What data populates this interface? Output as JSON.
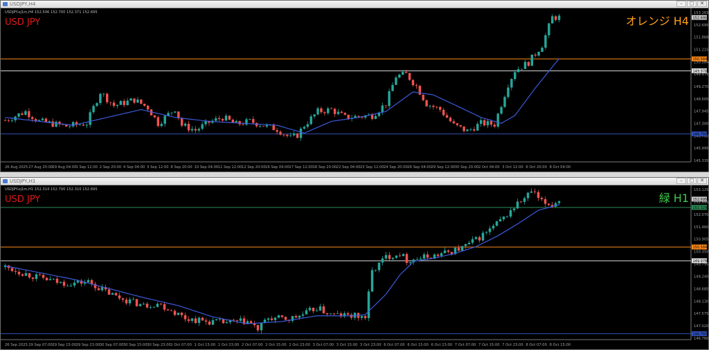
{
  "colors": {
    "background": "#000000",
    "bull": "#26a69a",
    "bear": "#ef5350",
    "ma": "#3b5bdb",
    "grid": "#2a2a2a",
    "axis_text": "#a0a0a0",
    "orange_line": "#ff8c1a",
    "white_line": "#e0e0e0",
    "blue_line": "#2f4fb5",
    "green_line": "#2e8b57",
    "symbol_red": "#e01818",
    "h4_badge": "#ff9f1a",
    "h1_badge": "#3cc84a"
  },
  "icons": {
    "minimize": "minimize-icon",
    "restore": "restore-icon",
    "close": "close-icon"
  },
  "h4": {
    "window_title": "USDJPY,H4",
    "info_line": "USDJPY.oj1m,H4  152.506 152.700 152.371 152.695",
    "symbol_label": "USD JPY",
    "badge": "オレンジ H4",
    "price_labels": [
      "153.163",
      "152.695",
      "151.868",
      "151.215",
      "150.584",
      "149.978",
      "149.270",
      "148.605",
      "147.945",
      "147.300",
      "146.760",
      "145.995",
      "145.335"
    ],
    "time_labels": [
      "26 Aug 2025",
      "27 Aug 20:00",
      "29 Aug 04:00",
      "1 Sep 12:00",
      "2 Sep 20:00",
      "4 Sep 04:00",
      "5 Sep 12:00",
      "8 Sep 20:00",
      "10 Sep 04:00",
      "11 Sep 12:00",
      "12 Sep 20:00",
      "16 Sep 04:00",
      "17 Sep 12:00",
      "18 Sep 20:00",
      "22 Sep 04:00",
      "23 Sep 12:00",
      "24 Sep 20:00",
      "26 Sep 04:00",
      "29 Sep 12:00",
      "30 Sep 20:00",
      "2 Oct 04:00",
      "3 Oct 12:00",
      "6 Oct 20:00",
      "8 Oct 04:00"
    ],
    "current_price": "152.695",
    "level_labels": {
      "orange": "150.584",
      "white": "149.978",
      "blue": "146.760"
    }
  },
  "h1": {
    "window_title": "USDJPY,H1",
    "info_line": "USDJPY.oj1m,H1  152.314 152.700 152.310 152.695",
    "symbol_label": "USD JPY",
    "badge": "緑 H1",
    "price_labels": [
      "153.125",
      "152.695",
      "152.070",
      "151.460",
      "150.905",
      "150.350",
      "149.795",
      "149.240",
      "148.685",
      "148.130",
      "147.575",
      "147.020",
      "146.760"
    ],
    "time_labels": [
      "26 Sep 2025",
      "29 Sep 07:00",
      "29 Sep 15:00",
      "29 Sep 23:00",
      "30 Sep 07:00",
      "30 Sep 15:00",
      "30 Sep 23:00",
      "1 Oct 07:00",
      "1 Oct 15:00",
      "1 Oct 23:00",
      "2 Oct 07:00",
      "2 Oct 15:00",
      "2 Oct 23:00",
      "3 Oct 07:00",
      "3 Oct 15:00",
      "3 Oct 23:00",
      "6 Oct 07:00",
      "6 Oct 15:00",
      "6 Oct 23:00",
      "7 Oct 07:00",
      "7 Oct 15:00",
      "7 Oct 23:00",
      "8 Oct 07:00",
      "8 Oct 15:00"
    ],
    "current_price": "152.695",
    "level_labels": {
      "green": "152.329",
      "orange": "150.584",
      "white": "149.978",
      "blue": "146.760"
    }
  },
  "chart_data": [
    {
      "type": "candlestick",
      "title": "USDJPY,H4",
      "ylim": [
        145.335,
        153.163
      ],
      "levels": [
        {
          "name": "orange",
          "value": 150.584
        },
        {
          "name": "white",
          "value": 149.978
        },
        {
          "name": "blue",
          "value": 146.76
        }
      ],
      "close_path": [
        [
          0,
          147.45
        ],
        [
          6,
          147.9
        ],
        [
          10,
          147.4
        ],
        [
          18,
          147.15
        ],
        [
          24,
          147.3
        ],
        [
          28,
          148.9
        ],
        [
          32,
          148.2
        ],
        [
          38,
          148.5
        ],
        [
          42,
          148.1
        ],
        [
          45,
          147.3
        ],
        [
          50,
          148.05
        ],
        [
          52,
          147.2
        ],
        [
          56,
          146.95
        ],
        [
          60,
          147.35
        ],
        [
          64,
          147.6
        ],
        [
          68,
          147.25
        ],
        [
          72,
          147.4
        ],
        [
          76,
          147.2
        ],
        [
          80,
          147.0
        ],
        [
          84,
          146.55
        ],
        [
          86,
          146.7
        ],
        [
          88,
          147.2
        ],
        [
          92,
          147.9
        ],
        [
          96,
          148.0
        ],
        [
          100,
          147.6
        ],
        [
          104,
          147.65
        ],
        [
          108,
          147.7
        ],
        [
          112,
          148.3
        ],
        [
          115,
          149.7
        ],
        [
          118,
          149.8
        ],
        [
          121,
          149.2
        ],
        [
          124,
          148.3
        ],
        [
          128,
          148.0
        ],
        [
          132,
          147.2
        ],
        [
          136,
          146.9
        ],
        [
          140,
          147.3
        ],
        [
          144,
          147.25
        ],
        [
          148,
          149.3
        ],
        [
          150,
          150.0
        ],
        [
          154,
          150.4
        ],
        [
          158,
          151.3
        ],
        [
          161,
          152.7
        ],
        [
          163,
          152.7
        ]
      ],
      "ma_path": [
        [
          0,
          147.6
        ],
        [
          20,
          147.2
        ],
        [
          30,
          147.6
        ],
        [
          40,
          148.0
        ],
        [
          50,
          147.6
        ],
        [
          60,
          147.4
        ],
        [
          70,
          147.3
        ],
        [
          80,
          147.2
        ],
        [
          88,
          146.8
        ],
        [
          96,
          147.4
        ],
        [
          104,
          147.6
        ],
        [
          112,
          147.9
        ],
        [
          120,
          148.9
        ],
        [
          126,
          148.75
        ],
        [
          134,
          148.1
        ],
        [
          140,
          147.6
        ],
        [
          146,
          147.3
        ],
        [
          150,
          147.7
        ],
        [
          156,
          149.1
        ],
        [
          163,
          150.6
        ]
      ],
      "candles_count": 164
    },
    {
      "type": "candlestick",
      "title": "USDJPY,H1",
      "ylim": [
        146.5,
        153.3
      ],
      "levels": [
        {
          "name": "green",
          "value": 152.329
        },
        {
          "name": "orange",
          "value": 150.584
        },
        {
          "name": "white",
          "value": 149.978
        },
        {
          "name": "blue",
          "value": 146.76
        }
      ],
      "close_path": [
        [
          0,
          149.7
        ],
        [
          8,
          149.3
        ],
        [
          16,
          149.0
        ],
        [
          20,
          149.0
        ],
        [
          24,
          149.05
        ],
        [
          28,
          148.7
        ],
        [
          32,
          148.4
        ],
        [
          36,
          148.2
        ],
        [
          40,
          148.0
        ],
        [
          44,
          148.1
        ],
        [
          48,
          147.8
        ],
        [
          52,
          147.45
        ],
        [
          58,
          147.3
        ],
        [
          64,
          147.25
        ],
        [
          70,
          147.3
        ],
        [
          73,
          146.95
        ],
        [
          76,
          147.45
        ],
        [
          82,
          147.4
        ],
        [
          86,
          147.6
        ],
        [
          90,
          147.9
        ],
        [
          94,
          147.6
        ],
        [
          100,
          147.55
        ],
        [
          104,
          147.5
        ],
        [
          106,
          149.5
        ],
        [
          110,
          150.15
        ],
        [
          114,
          150.3
        ],
        [
          116,
          150.0
        ],
        [
          120,
          150.1
        ],
        [
          124,
          150.2
        ],
        [
          128,
          150.35
        ],
        [
          132,
          150.55
        ],
        [
          136,
          150.9
        ],
        [
          140,
          151.35
        ],
        [
          144,
          151.85
        ],
        [
          148,
          152.5
        ],
        [
          150,
          152.7
        ],
        [
          152,
          153.05
        ],
        [
          155,
          152.55
        ],
        [
          158,
          152.45
        ],
        [
          160,
          152.65
        ]
      ],
      "ma_path": [
        [
          0,
          149.75
        ],
        [
          10,
          149.45
        ],
        [
          20,
          149.15
        ],
        [
          30,
          148.75
        ],
        [
          40,
          148.35
        ],
        [
          50,
          148.0
        ],
        [
          60,
          147.5
        ],
        [
          70,
          147.2
        ],
        [
          80,
          147.3
        ],
        [
          90,
          147.55
        ],
        [
          100,
          147.55
        ],
        [
          104,
          147.6
        ],
        [
          110,
          148.5
        ],
        [
          114,
          149.35
        ],
        [
          118,
          149.95
        ],
        [
          124,
          150.1
        ],
        [
          130,
          150.3
        ],
        [
          136,
          150.6
        ],
        [
          142,
          151.05
        ],
        [
          148,
          151.6
        ],
        [
          154,
          152.2
        ],
        [
          160,
          152.45
        ]
      ],
      "candles_count": 161
    }
  ]
}
